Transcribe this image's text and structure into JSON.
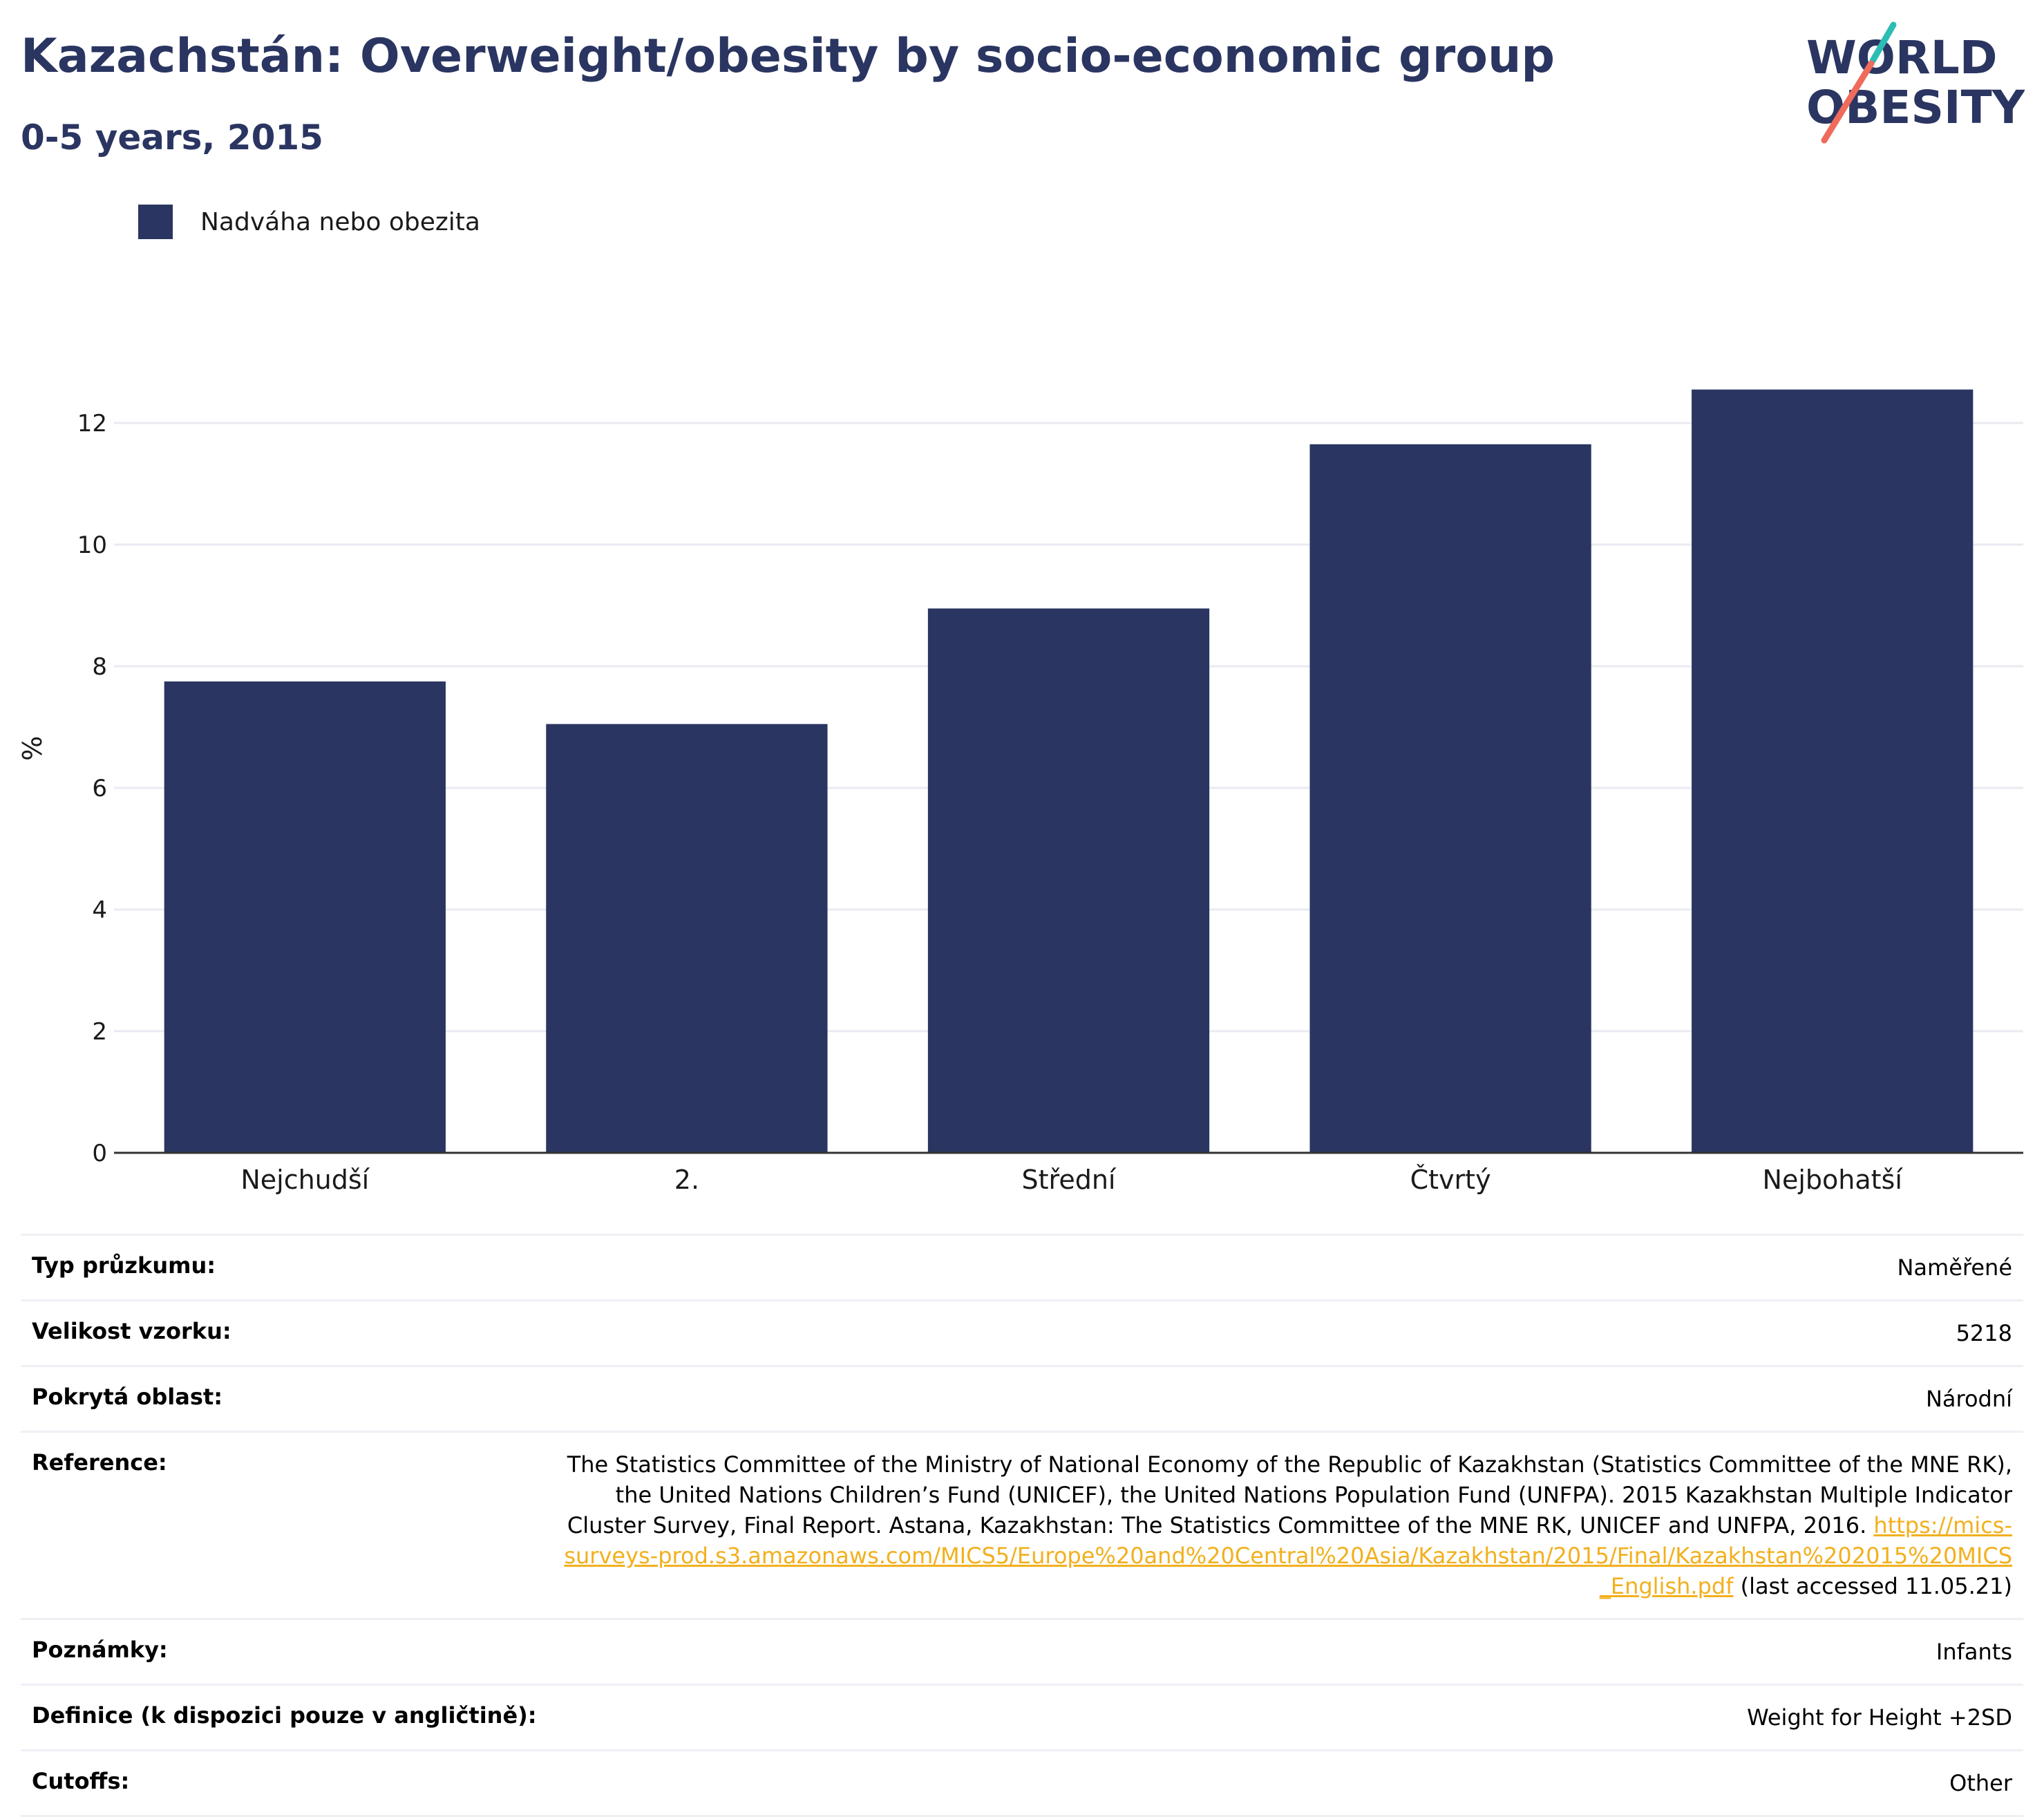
{
  "title": "Kazachstán: Overweight/obesity by socio-economic group",
  "subtitle": "0-5 years, 2015",
  "logo": {
    "line1": "WORLD",
    "line2": "OBESITY"
  },
  "chart_data": {
    "type": "bar",
    "categories": [
      "Nejchudší",
      "2.",
      "Střední",
      "Čtvrtý",
      "Nejbohatší"
    ],
    "series": [
      {
        "name": "Nadváha nebo obezita",
        "values": [
          7.75,
          7.05,
          8.95,
          11.65,
          12.55
        ],
        "color": "#2a3561"
      }
    ],
    "ylabel": "%",
    "xlabel": "",
    "ylim": [
      0,
      13.3
    ],
    "yticks": [
      0,
      2,
      4,
      6,
      8,
      10,
      12
    ],
    "grid": true,
    "legend": "top-left"
  },
  "info": {
    "rows": [
      {
        "label": "Typ průzkumu:",
        "value": "Naměřené"
      },
      {
        "label": "Velikost vzorku:",
        "value": "5218"
      },
      {
        "label": "Pokrytá oblast:",
        "value": "Národní"
      }
    ],
    "reference": {
      "label": "Reference:",
      "text": "The Statistics Committee of the Ministry of National Economy of the Republic of Kazakhstan (Statistics Committee of the MNE RK), the United Nations Children’s Fund (UNICEF), the United Nations Population Fund (UNFPA). 2015 Kazakhstan Multiple Indicator Cluster Survey, Final Report. Astana, Kazakhstan: The Statistics Committee of the MNE RK, UNICEF and UNFPA, 2016. ",
      "link": "https://mics-surveys-prod.s3.amazonaws.com/MICS5/Europe%20and%20Central%20Asia/Kazakhstan/2015/Final/Kazakhstan%202015%20MICS_English.pdf",
      "suffix": " (last accessed 11.05.21)"
    },
    "rows_after": [
      {
        "label": "Poznámky:",
        "value": "Infants"
      },
      {
        "label": "Definice (k dispozici pouze v angličtině):",
        "value": "Weight for Height +2SD"
      },
      {
        "label": "Cutoffs:",
        "value": "Other"
      }
    ]
  },
  "colors": {
    "brand": "#2a3561",
    "link": "#f2b01e",
    "logo_teal": "#2bbdb4",
    "logo_coral": "#ef6b5b"
  }
}
